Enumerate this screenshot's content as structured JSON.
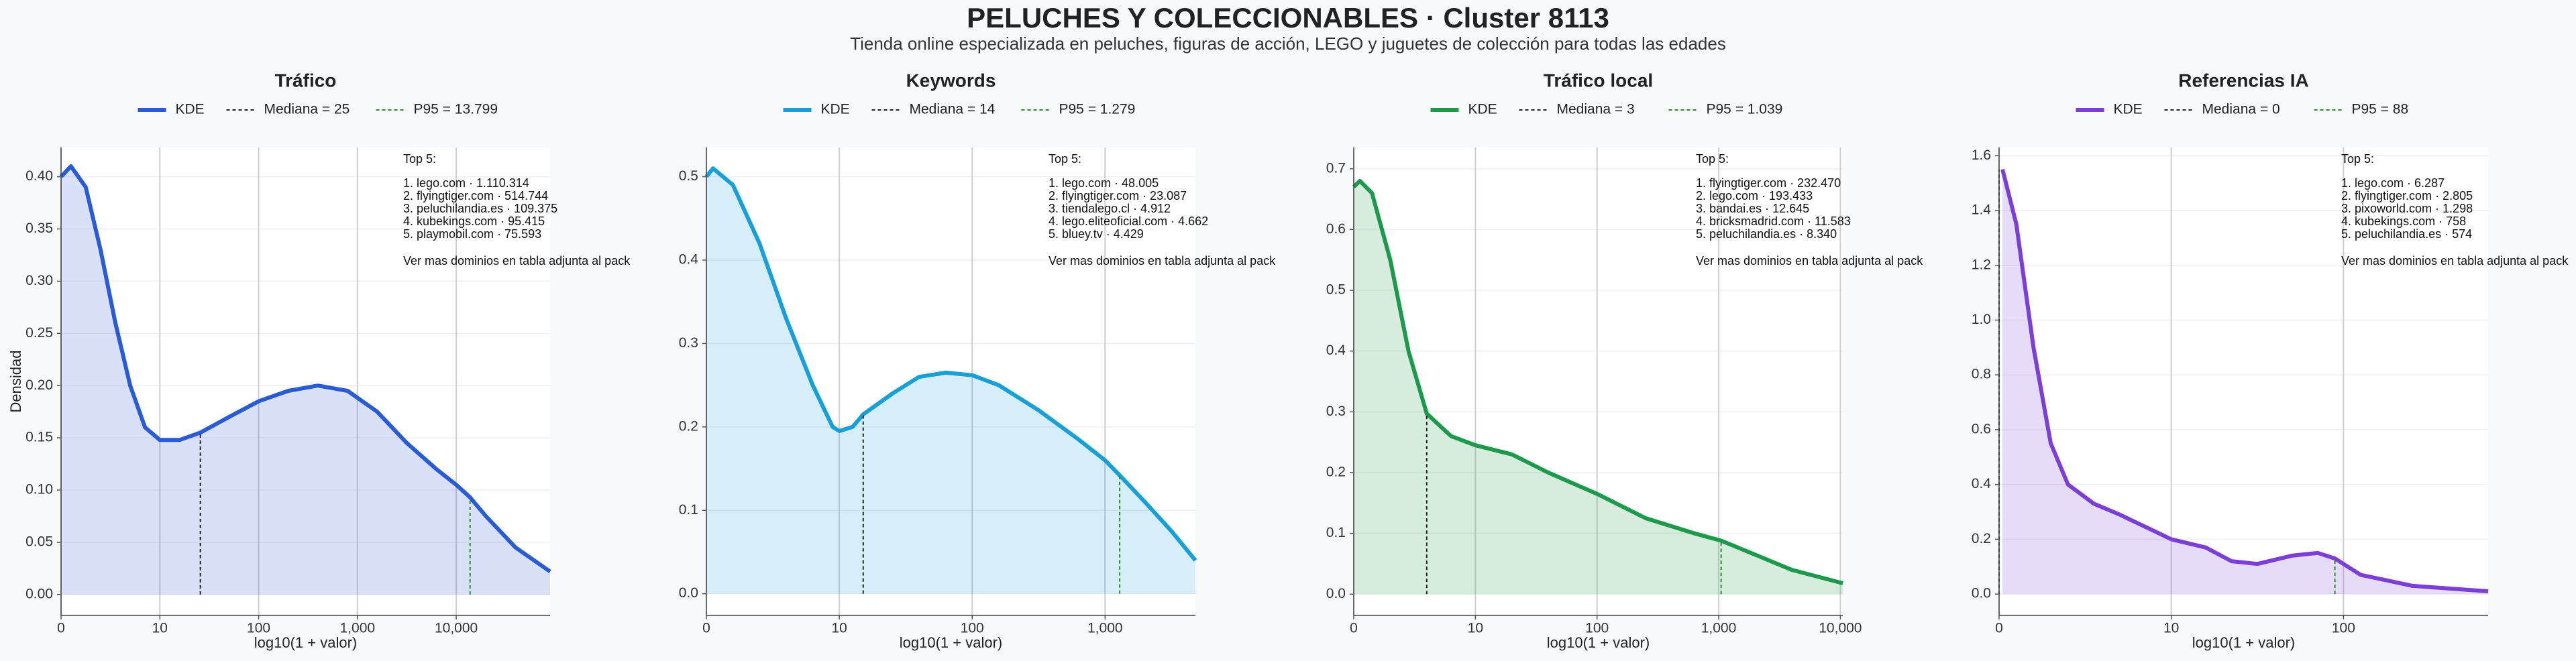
{
  "title": "PELUCHES Y COLECCIONABLES · Cluster 8113",
  "subtitle": "Tienda online especializada en peluches, figuras de acción, LEGO y juguetes de colección para todas las edades",
  "chart_data": [
    {
      "type": "area",
      "title": "Tráfico",
      "xlabel": "log10(1 + valor)",
      "ylabel": "Densidad",
      "legend": "top",
      "grid": true,
      "x": [
        0,
        0.1,
        0.25,
        0.4,
        0.55,
        0.7,
        0.85,
        1.0,
        1.2,
        1.41,
        1.7,
        2.0,
        2.3,
        2.6,
        2.9,
        3.2,
        3.5,
        3.8,
        4.0,
        4.14,
        4.3,
        4.6,
        4.95
      ],
      "series": [
        {
          "name": "KDE",
          "color": "#2a5bd7",
          "values": [
            0.4,
            0.41,
            0.39,
            0.33,
            0.26,
            0.2,
            0.16,
            0.148,
            0.148,
            0.155,
            0.17,
            0.185,
            0.195,
            0.2,
            0.195,
            0.175,
            0.145,
            0.12,
            0.105,
            0.093,
            0.075,
            0.045,
            0.022
          ]
        }
      ],
      "reference_lines": [
        {
          "name": "Mediana = 25",
          "x": 1.41,
          "density": 0.155,
          "color": "#222222"
        },
        {
          "name": "P95 = 13.799",
          "x": 4.14,
          "density": 0.093,
          "color": "#2a8a2a"
        }
      ],
      "xlim": [
        0,
        4.95
      ],
      "xticks": [
        0,
        {
          "value": 1,
          "label": "10"
        },
        {
          "value": 2,
          "label": "100"
        },
        {
          "value": 3,
          "label": "1,000"
        },
        {
          "value": 4,
          "label": "10,000"
        }
      ],
      "ylim": [
        -0.02,
        0.428
      ],
      "yticks": [
        {
          "value": 0,
          "label": "0.00"
        },
        0.05,
        {
          "value": 0.1,
          "label": "0.10"
        },
        0.15,
        {
          "value": 0.2,
          "label": "0.20"
        },
        0.25,
        {
          "value": 0.3,
          "label": "0.30"
        },
        0.35,
        {
          "value": 0.4,
          "label": "0.40"
        }
      ],
      "top_title": "Top 5:",
      "top_items": [
        "1. lego.com · 1.110.314",
        "2. flyingtiger.com · 514.744",
        "3. peluchilandia.es · 109.375",
        "4. kubekings.com · 95.415",
        "5. playmobil.com · 75.593"
      ],
      "note": "Ver mas dominios en tabla adjunta al pack"
    },
    {
      "type": "area",
      "title": "Keywords",
      "xlabel": "log10(1 + valor)",
      "legend": "top",
      "grid": true,
      "x": [
        0,
        0.05,
        0.2,
        0.4,
        0.6,
        0.8,
        0.95,
        1.0,
        1.1,
        1.18,
        1.4,
        1.6,
        1.8,
        2.0,
        2.2,
        2.5,
        2.8,
        3.0,
        3.11,
        3.3,
        3.5,
        3.68
      ],
      "series": [
        {
          "name": "KDE",
          "color": "#17a0d8",
          "values": [
            0.5,
            0.51,
            0.49,
            0.42,
            0.33,
            0.25,
            0.2,
            0.195,
            0.2,
            0.215,
            0.24,
            0.26,
            0.265,
            0.262,
            0.25,
            0.22,
            0.185,
            0.16,
            0.142,
            0.11,
            0.075,
            0.04
          ]
        }
      ],
      "reference_lines": [
        {
          "name": "Mediana = 14",
          "x": 1.18,
          "density": 0.215,
          "color": "#222222"
        },
        {
          "name": "P95 = 1.279",
          "x": 3.11,
          "density": 0.142,
          "color": "#2a8a2a"
        }
      ],
      "xlim": [
        0,
        3.68
      ],
      "xticks": [
        0,
        {
          "value": 1,
          "label": "10"
        },
        {
          "value": 2,
          "label": "100"
        },
        {
          "value": 3,
          "label": "1,000"
        }
      ],
      "ylim": [
        -0.026,
        0.535
      ],
      "yticks": [
        {
          "value": 0,
          "label": "0.0"
        },
        0.1,
        0.2,
        0.3,
        0.4,
        0.5
      ],
      "top_title": "Top 5:",
      "top_items": [
        "1. lego.com · 48.005",
        "2. flyingtiger.com · 23.087",
        "3. tiendalego.cl · 4.912",
        "4. lego.eliteoficial.com · 4.662",
        "5. bluey.tv · 4.429"
      ],
      "note": "Ver mas dominios en tabla adjunta al pack"
    },
    {
      "type": "area",
      "title": "Tráfico local",
      "xlabel": "log10(1 + valor)",
      "legend": "top",
      "grid": true,
      "x": [
        0,
        0.05,
        0.15,
        0.3,
        0.45,
        0.6,
        0.8,
        1.0,
        1.3,
        1.6,
        2.0,
        2.4,
        2.8,
        3.02,
        3.3,
        3.6,
        4.02
      ],
      "series": [
        {
          "name": "KDE",
          "color": "#1a9a4a",
          "values": [
            0.67,
            0.68,
            0.66,
            0.55,
            0.4,
            0.297,
            0.26,
            0.245,
            0.23,
            0.2,
            0.165,
            0.125,
            0.1,
            0.088,
            0.065,
            0.04,
            0.018
          ]
        }
      ],
      "reference_lines": [
        {
          "name": "Mediana = 3",
          "x": 0.6,
          "density": 0.297,
          "color": "#222222"
        },
        {
          "name": "P95 = 1.039",
          "x": 3.02,
          "density": 0.088,
          "color": "#2a8a2a"
        }
      ],
      "xlim": [
        0,
        4.02
      ],
      "xticks": [
        0,
        {
          "value": 1,
          "label": "10"
        },
        {
          "value": 2,
          "label": "100"
        },
        {
          "value": 3,
          "label": "1,000"
        },
        {
          "value": 4,
          "label": "10,000"
        }
      ],
      "ylim": [
        -0.035,
        0.735
      ],
      "yticks": [
        {
          "value": 0,
          "label": "0.0"
        },
        0.1,
        0.2,
        0.3,
        0.4,
        0.5,
        0.6,
        0.7
      ],
      "top_title": "Top 5:",
      "top_items": [
        "1. flyingtiger.com · 232.470",
        "2. lego.com · 193.433",
        "3. bandai.es · 12.645",
        "4. bricksmadrid.com · 11.583",
        "5. peluchilandia.es · 8.340"
      ],
      "note": "Ver mas dominios en tabla adjunta al pack"
    },
    {
      "type": "area",
      "title": "Referencias IA",
      "xlabel": "log10(1 + valor)",
      "legend": "top",
      "grid": true,
      "x": [
        0.02,
        0.1,
        0.2,
        0.3,
        0.4,
        0.55,
        0.7,
        0.9,
        1.0,
        1.2,
        1.35,
        1.5,
        1.7,
        1.85,
        1.95,
        2.1,
        2.4,
        2.84
      ],
      "series": [
        {
          "name": "KDE",
          "color": "#7b3fd8",
          "values": [
            1.55,
            1.35,
            0.9,
            0.55,
            0.4,
            0.33,
            0.29,
            0.23,
            0.2,
            0.17,
            0.12,
            0.11,
            0.14,
            0.15,
            0.13,
            0.07,
            0.03,
            0.01
          ]
        }
      ],
      "reference_lines": [
        {
          "name": "Mediana = 0",
          "x": 0,
          "density": 1.55,
          "color": "#222222"
        },
        {
          "name": "P95 = 88",
          "x": 1.95,
          "density": 0.13,
          "color": "#2a8a2a"
        }
      ],
      "xlim": [
        0,
        2.84
      ],
      "xticks": [
        0,
        {
          "value": 1,
          "label": "10"
        },
        {
          "value": 2,
          "label": "100"
        }
      ],
      "ylim": [
        -0.078,
        1.63
      ],
      "yticks": [
        {
          "value": 0,
          "label": "0.0"
        },
        0.2,
        0.4,
        0.6,
        0.8,
        {
          "value": 1,
          "label": "1.0"
        },
        1.2,
        1.4,
        1.6
      ],
      "top_title": "Top 5:",
      "top_items": [
        "1. lego.com · 6.287",
        "2. flyingtiger.com · 2.805",
        "3. pixoworld.com · 1.298",
        "4. kubekings.com · 758",
        "5. peluchilandia.es · 574"
      ],
      "note": "Ver mas dominios en tabla adjunta al pack"
    }
  ]
}
